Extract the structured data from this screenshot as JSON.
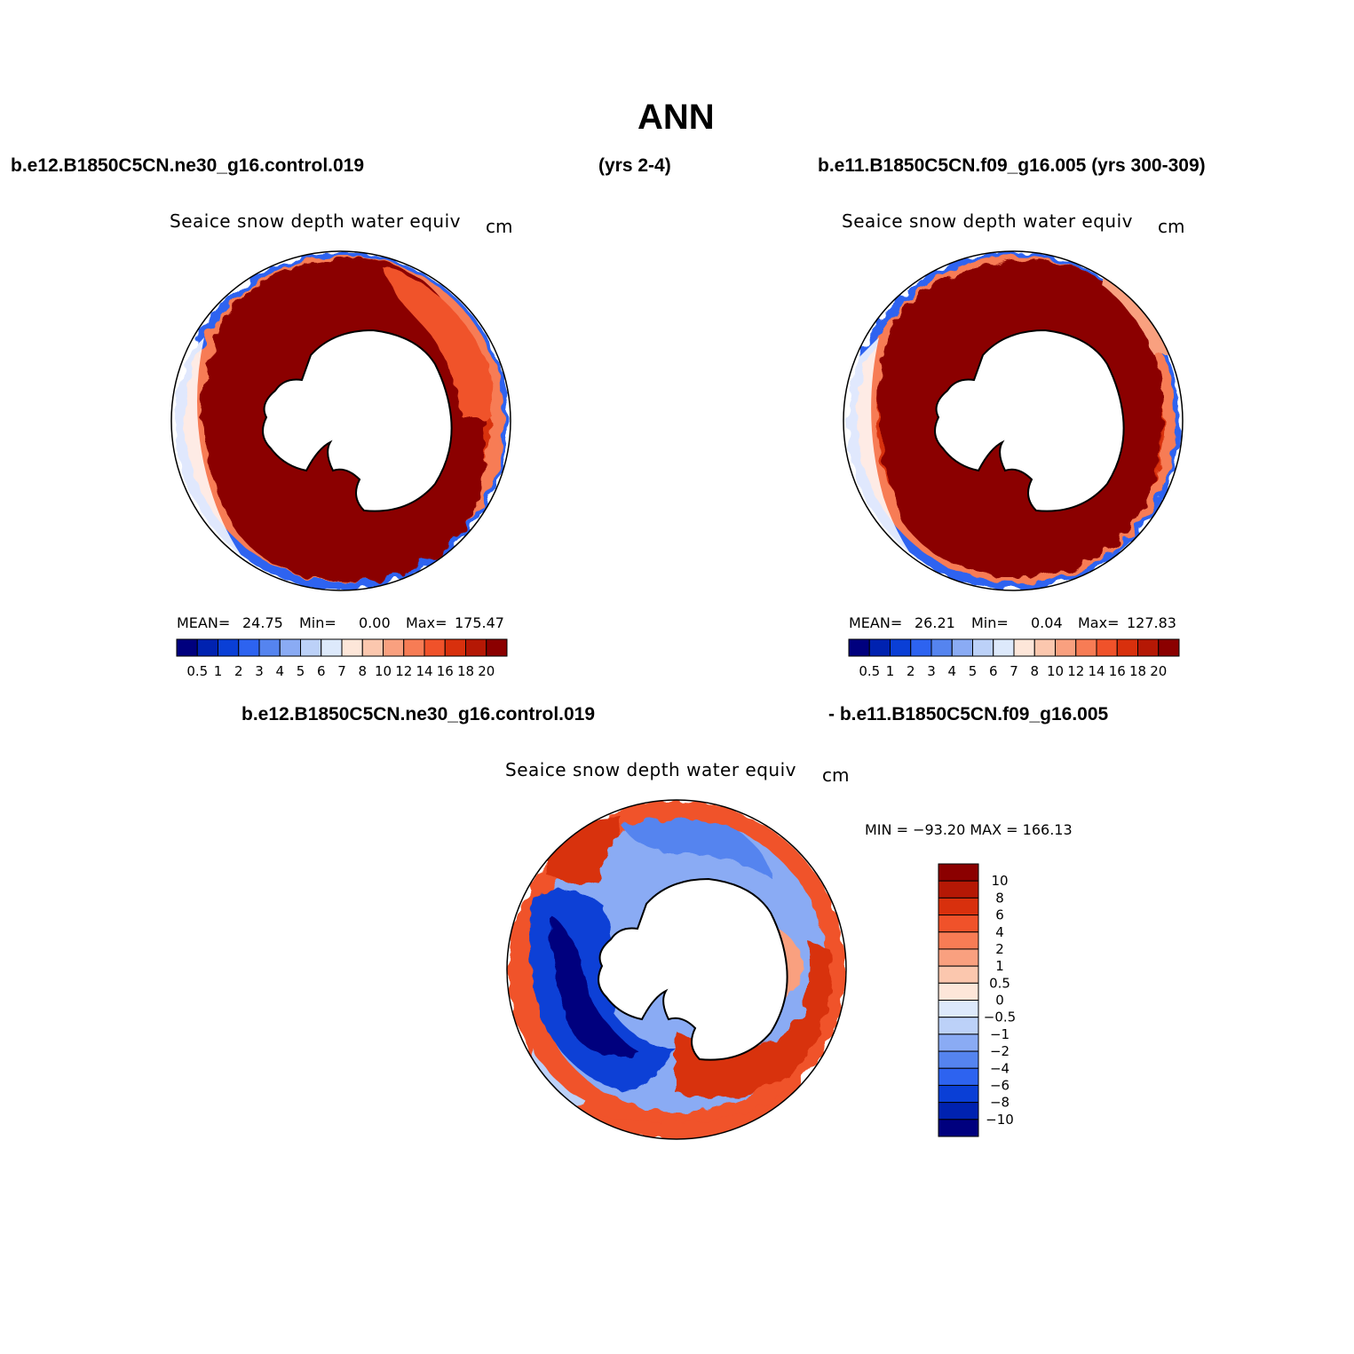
{
  "page": {
    "title": "ANN",
    "header_left": "b.e12.B1850C5CN.ne30_g16.control.019",
    "header_mid": "(yrs 2-4)",
    "header_right": "b.e11.B1850C5CN.f09_g16.005 (yrs 300-309)",
    "diff_header_left": "b.e12.B1850C5CN.ne30_g16.control.019",
    "diff_header_right": "- b.e11.B1850C5CN.f09_g16.005"
  },
  "panels": [
    {
      "title": "Seaice snow depth water equiv",
      "unit": "cm",
      "mean_label": "MEAN=",
      "mean": "24.75",
      "min_label": "Min=",
      "min": "0.00",
      "max_label": "Max=",
      "max": "175.47"
    },
    {
      "title": "Seaice snow depth water equiv",
      "unit": "cm",
      "mean_label": "MEAN=",
      "mean": "26.21",
      "min_label": "Min=",
      "min": "0.04",
      "max_label": "Max=",
      "max": "127.83"
    },
    {
      "title": "Seaice snow depth water equiv",
      "unit": "cm",
      "minmax_text": "MIN = −93.20 MAX = 166.13"
    }
  ],
  "colorbars": {
    "abs_labels": [
      "0.5",
      "1",
      "2",
      "3",
      "4",
      "5",
      "6",
      "7",
      "8",
      "10",
      "12",
      "14",
      "16",
      "18",
      "20"
    ],
    "abs_colors": [
      "#00007e",
      "#0022b0",
      "#0a3fd6",
      "#2d63f0",
      "#5584ef",
      "#8aabf4",
      "#bcd1f8",
      "#dde9fb",
      "#fde6d9",
      "#fbc7ae",
      "#f9a07f",
      "#f77c55",
      "#f0522a",
      "#d8300d",
      "#b51805",
      "#8b0000"
    ],
    "diff_labels": [
      "10",
      "8",
      "6",
      "4",
      "2",
      "1",
      "0.5",
      "0",
      "−0.5",
      "−1",
      "−2",
      "−4",
      "−6",
      "−8",
      "−10"
    ],
    "diff_colors": [
      "#8b0000",
      "#b51805",
      "#d8300d",
      "#f0522a",
      "#f77c55",
      "#f9a07f",
      "#fbc7ae",
      "#fde6d9",
      "#dde9fb",
      "#bcd1f8",
      "#8aabf4",
      "#5584ef",
      "#2d63f0",
      "#0a3fd6",
      "#0022b0",
      "#00007e"
    ]
  }
}
